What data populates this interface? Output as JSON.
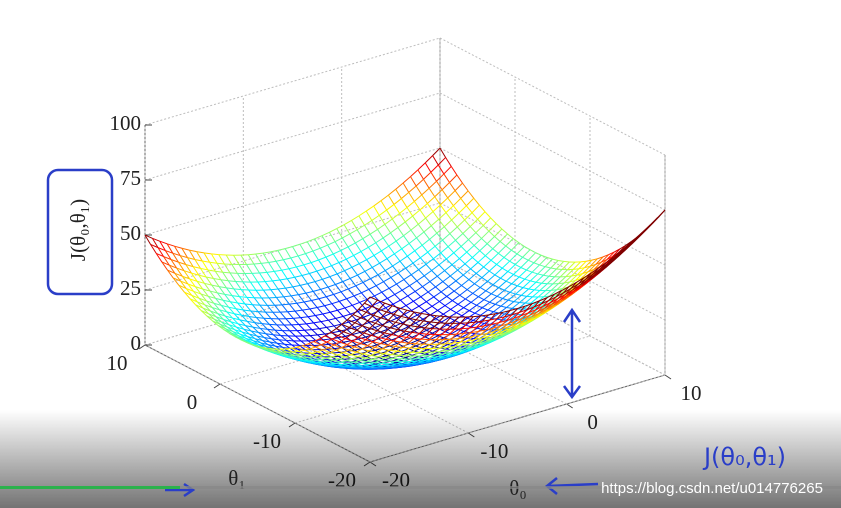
{
  "chart_data": {
    "type": "surface",
    "zlabel": "J(θ₀,θ₁)",
    "xlabel": "θ₀",
    "ylabel": "θ₁",
    "xlim": [
      -20,
      10
    ],
    "ylim": [
      -20,
      10
    ],
    "zlim": [
      0,
      100
    ],
    "xticks": [
      -20,
      -10,
      0,
      10
    ],
    "yticks": [
      -20,
      -10,
      0,
      10
    ],
    "zticks": [
      0,
      25,
      50,
      75,
      100
    ],
    "grid": true,
    "annotation": "J(θ₀,θ₁)",
    "watermark": "https://blog.csdn.net/u014776265"
  }
}
